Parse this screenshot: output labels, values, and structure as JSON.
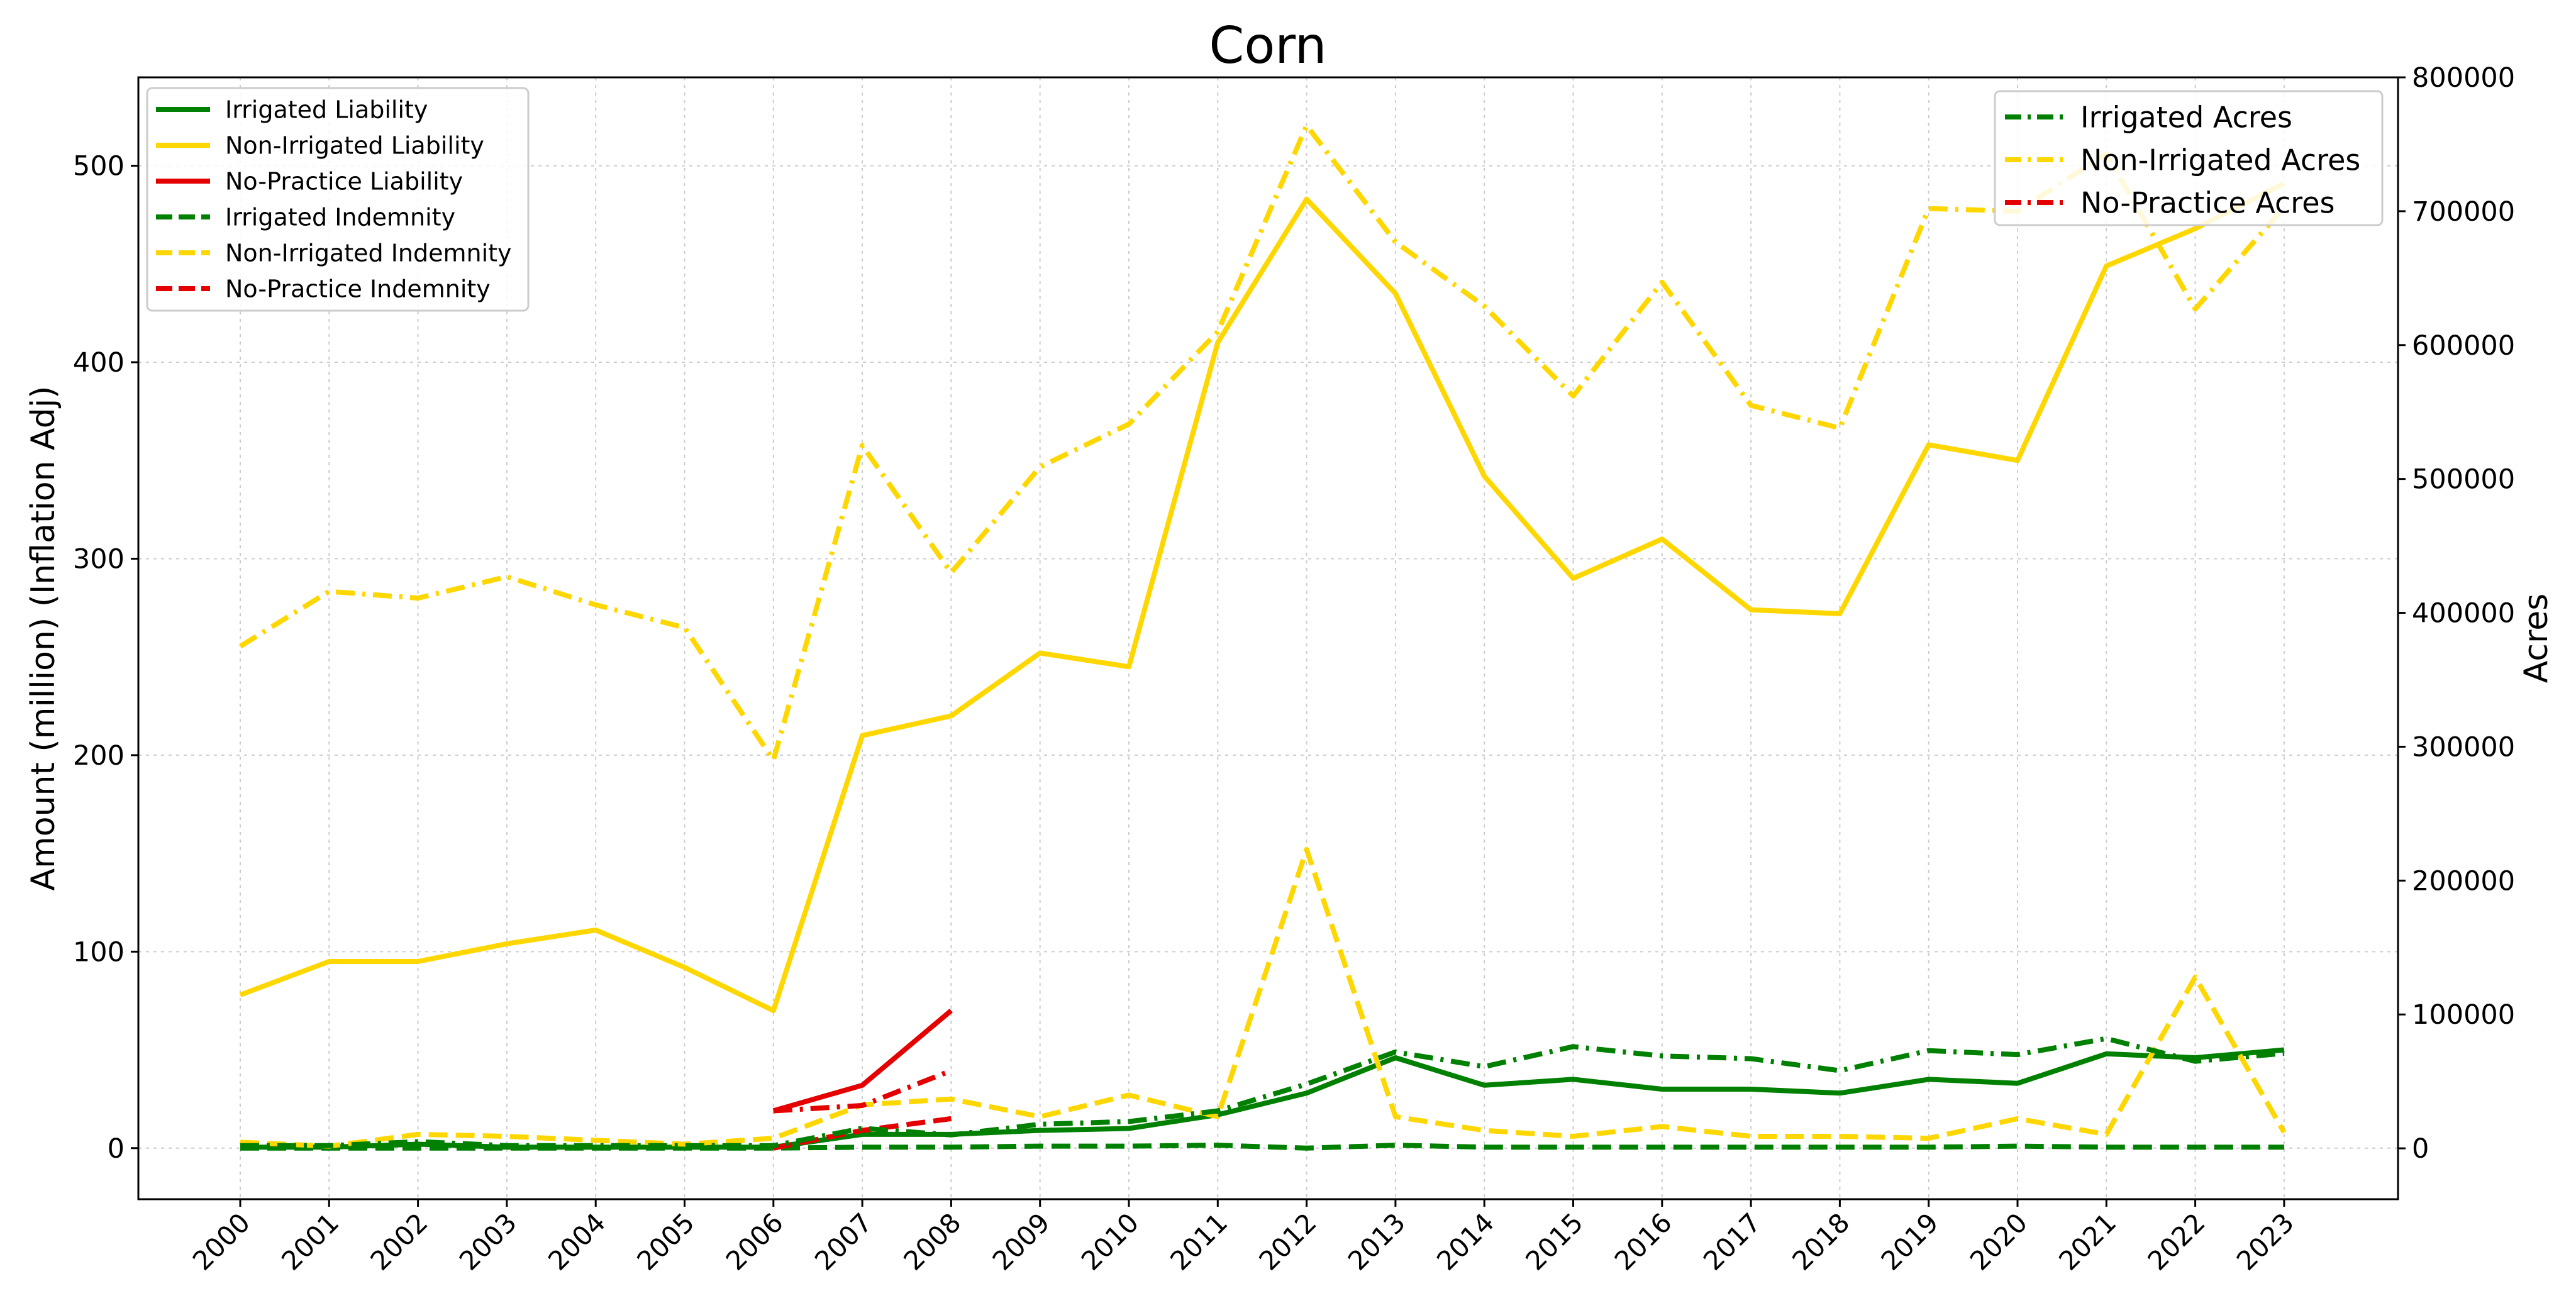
{
  "chart_data": {
    "type": "line",
    "title": "Corn",
    "xlabel": "",
    "ylabel_left": "Amount (million) (Inflation Adj)",
    "ylabel_right": "Acres",
    "x": [
      "2000",
      "2001",
      "2002",
      "2003",
      "2004",
      "2005",
      "2006",
      "2007",
      "2008",
      "2009",
      "2010",
      "2011",
      "2012",
      "2013",
      "2014",
      "2015",
      "2016",
      "2017",
      "2018",
      "2019",
      "2020",
      "2021",
      "2022",
      "2023"
    ],
    "ylim_left": [
      -26,
      545
    ],
    "ylim_right": [
      -38000,
      800000
    ],
    "yticks_left": [
      "0",
      "100",
      "200",
      "300",
      "400",
      "500"
    ],
    "yticks_right": [
      "0",
      "100000",
      "200000",
      "300000",
      "400000",
      "500000",
      "600000",
      "700000",
      "800000"
    ],
    "grid": true,
    "legend_left_placement": "top-left",
    "legend_right_placement": "top-right",
    "series_left": [
      {
        "name": "Irrigated Liability",
        "color": "#008000",
        "style": "solid",
        "values": [
          0.5,
          0.5,
          2,
          0.5,
          0.5,
          0.5,
          0.5,
          7,
          7,
          9,
          10,
          17,
          28,
          46,
          32,
          35,
          30,
          30,
          28,
          35,
          33,
          48,
          46,
          50
        ]
      },
      {
        "name": "Non-Irrigated Liability",
        "color": "#FFD700",
        "style": "solid",
        "values": [
          78,
          95,
          95,
          104,
          111,
          92,
          70,
          210,
          220,
          252,
          245,
          410,
          483,
          435,
          342,
          290,
          310,
          274,
          272,
          358,
          350,
          449,
          468,
          491
        ]
      },
      {
        "name": "No-Practice Liability",
        "color": "#E50000",
        "style": "solid",
        "values": [
          null,
          null,
          null,
          null,
          null,
          null,
          19,
          32,
          70,
          null,
          null,
          null,
          null,
          null,
          null,
          null,
          null,
          null,
          null,
          null,
          null,
          null,
          null,
          null
        ]
      },
      {
        "name": "Irrigated Indemnity",
        "color": "#008000",
        "style": "dashed",
        "values": [
          0,
          0,
          0,
          0,
          0,
          0,
          0,
          0.5,
          0.5,
          1,
          1,
          1.5,
          0,
          1.5,
          0.5,
          0.5,
          0.5,
          0.5,
          0.5,
          0.5,
          1,
          0.5,
          0.5,
          0.5
        ]
      },
      {
        "name": "Non-Irrigated Indemnity",
        "color": "#FFD700",
        "style": "dashed",
        "values": [
          3,
          1,
          7,
          6,
          4,
          2,
          5,
          22,
          25,
          16,
          27,
          16,
          152,
          16,
          9,
          6,
          11,
          6,
          6,
          5,
          15,
          7,
          87,
          8
        ]
      },
      {
        "name": "No-Practice Indemnity",
        "color": "#E50000",
        "style": "dashed",
        "values": [
          null,
          null,
          null,
          null,
          null,
          null,
          0,
          9,
          15,
          null,
          null,
          null,
          null,
          null,
          null,
          null,
          null,
          null,
          null,
          null,
          null,
          null,
          null,
          null
        ]
      }
    ],
    "series_right": [
      {
        "name": "Irrigated Acres",
        "color": "#008000",
        "style": "dashdot",
        "values": [
          2000,
          2000,
          5000,
          2000,
          2000,
          2000,
          2000,
          15000,
          10000,
          18000,
          20000,
          28000,
          48000,
          72000,
          61000,
          76000,
          69000,
          67000,
          58000,
          73000,
          70000,
          82000,
          65000,
          71000
        ]
      },
      {
        "name": "Non-Irrigated Acres",
        "color": "#FFD700",
        "style": "dashdot",
        "values": [
          375000,
          416000,
          411000,
          427000,
          406000,
          389000,
          290000,
          525000,
          430000,
          509000,
          541000,
          610000,
          764000,
          677000,
          629000,
          562000,
          647000,
          555000,
          538000,
          702000,
          700000,
          743000,
          627000,
          703000
        ]
      },
      {
        "name": "No-Practice Acres",
        "color": "#E50000",
        "style": "dashdot",
        "values": [
          null,
          null,
          null,
          null,
          null,
          null,
          28000,
          32000,
          58000,
          null,
          null,
          null,
          null,
          null,
          null,
          null,
          null,
          null,
          null,
          null,
          null,
          null,
          null,
          null
        ]
      }
    ]
  }
}
